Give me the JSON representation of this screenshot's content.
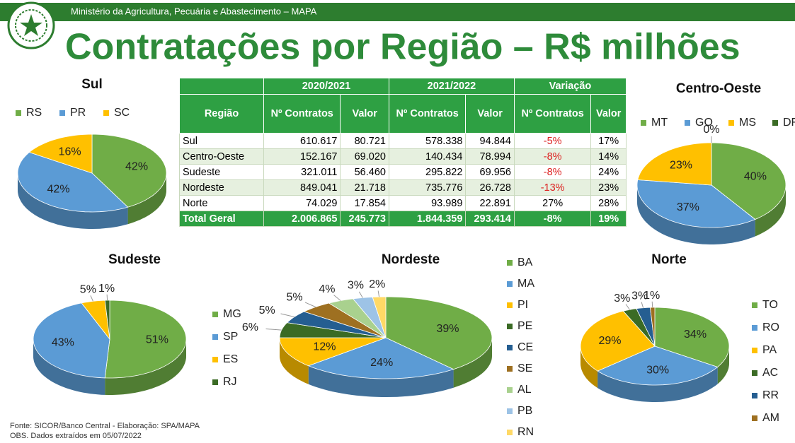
{
  "header": {
    "ministry": "Ministério da Agricultura, Pecuária e Abastecimento – MAPA",
    "title": "Contratações por Região – R$ milhões"
  },
  "table": {
    "header_top": [
      "2020/2021",
      "2021/2022",
      "Variação"
    ],
    "header": [
      "Região",
      "Nº Contratos",
      "Valor",
      "Nº Contratos",
      "Valor",
      "Nº Contratos",
      "Valor"
    ],
    "rows": [
      [
        "Sul",
        "610.617",
        "80.721",
        "578.338",
        "94.844",
        "-5%",
        "17%"
      ],
      [
        "Centro-Oeste",
        "152.167",
        "69.020",
        "140.434",
        "78.994",
        "-8%",
        "14%"
      ],
      [
        "Sudeste",
        "321.011",
        "56.460",
        "295.822",
        "69.956",
        "-8%",
        "24%"
      ],
      [
        "Nordeste",
        "849.041",
        "21.718",
        "735.776",
        "26.728",
        "-13%",
        "23%"
      ],
      [
        "Norte",
        "74.029",
        "17.854",
        "93.989",
        "22.891",
        "27%",
        "28%"
      ]
    ],
    "total": [
      "Total Geral",
      "2.006.865",
      "245.773",
      "1.844.359",
      "293.414",
      "-8%",
      "19%"
    ]
  },
  "chart_data": [
    {
      "type": "pie",
      "title": "Sul",
      "legend": "top",
      "categories": [
        "RS",
        "PR",
        "SC"
      ],
      "values": [
        42,
        42,
        16
      ],
      "value_labels": [
        "42%",
        "42%",
        "16%"
      ],
      "colors": [
        "#70ad47",
        "#5b9bd5",
        "#ffc000"
      ]
    },
    {
      "type": "pie",
      "title": "Centro-Oeste",
      "legend": "top",
      "categories": [
        "MT",
        "GO",
        "MS",
        "DF"
      ],
      "values": [
        40,
        37,
        23,
        0
      ],
      "value_labels": [
        "40%",
        "37%",
        "23%",
        "0%"
      ],
      "colors": [
        "#70ad47",
        "#5b9bd5",
        "#ffc000",
        "#3b6b25"
      ]
    },
    {
      "type": "pie",
      "title": "Sudeste",
      "legend": "right",
      "categories": [
        "MG",
        "SP",
        "ES",
        "RJ"
      ],
      "values": [
        51,
        43,
        5,
        1
      ],
      "value_labels": [
        "51%",
        "43%",
        "5%",
        "1%"
      ],
      "colors": [
        "#70ad47",
        "#5b9bd5",
        "#ffc000",
        "#3b6b25"
      ]
    },
    {
      "type": "pie",
      "title": "Nordeste",
      "legend": "right",
      "categories": [
        "BA",
        "MA",
        "PI",
        "PE",
        "CE",
        "SE",
        "AL",
        "PB",
        "RN"
      ],
      "values": [
        39,
        24,
        12,
        6,
        5,
        5,
        4,
        3,
        2
      ],
      "value_labels": [
        "39%",
        "24%",
        "12%",
        "6%",
        "5%",
        "5%",
        "4%",
        "3%",
        "2%"
      ],
      "colors": [
        "#70ad47",
        "#5b9bd5",
        "#ffc000",
        "#3b6b25",
        "#255e91",
        "#9e7021",
        "#a9d18e",
        "#9dc3e6",
        "#ffd966"
      ]
    },
    {
      "type": "pie",
      "title": "Norte",
      "legend": "right",
      "categories": [
        "TO",
        "RO",
        "PA",
        "AC",
        "RR",
        "AM"
      ],
      "values": [
        34,
        30,
        29,
        3,
        3,
        1
      ],
      "value_labels": [
        "34%",
        "30%",
        "29%",
        "3%",
        "3%",
        "1%"
      ],
      "colors": [
        "#70ad47",
        "#5b9bd5",
        "#ffc000",
        "#3b6b25",
        "#255e91",
        "#9e7021"
      ]
    }
  ],
  "footer": {
    "source": "Fonte: SICOR/Banco Central - Elaboração: SPA/MAPA",
    "note": "OBS. Dados extraídos em 05/07/2022"
  }
}
